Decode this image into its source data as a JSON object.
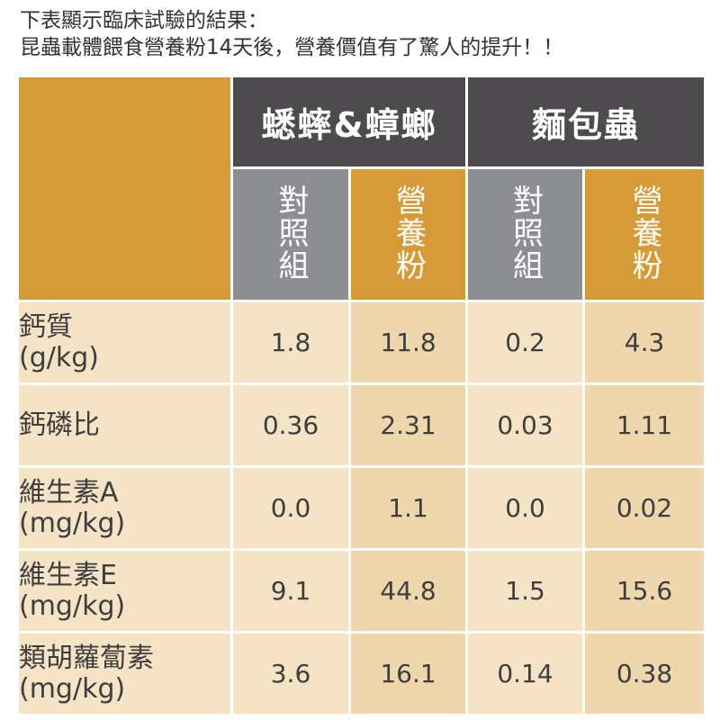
{
  "intro": {
    "line1": "下表顯示臨床試驗的結果：",
    "line2": "昆蟲載體餵食營養粉14天後，營養價值有了驚人的提升！！"
  },
  "groups": [
    {
      "label": "蟋蟀&蟑螂"
    },
    {
      "label": "麵包蟲"
    }
  ],
  "subheaders": [
    "對照組",
    "營養粉",
    "對照組",
    "營養粉"
  ],
  "rows": [
    {
      "name": "鈣質",
      "unit": "(g/kg)",
      "values": [
        "1.8",
        "11.8",
        "0.2",
        "4.3"
      ]
    },
    {
      "name": "鈣磷比",
      "unit": "",
      "values": [
        "0.36",
        "2.31",
        "0.03",
        "1.11"
      ]
    },
    {
      "name": "維生素A",
      "unit": "(mg/kg)",
      "values": [
        "0.0",
        "1.1",
        "0.0",
        "0.02"
      ]
    },
    {
      "name": "維生素E",
      "unit": "(mg/kg)",
      "values": [
        "9.1",
        "44.8",
        "1.5",
        "15.6"
      ]
    },
    {
      "name": "類胡蘿蔔素",
      "unit": "(mg/kg)",
      "values": [
        "3.6",
        "16.1",
        "0.14",
        "0.38"
      ]
    }
  ],
  "colors": {
    "orange": "#d69b36",
    "dark_header": "#4d4b4d",
    "gray_header": "#8d8e92",
    "cell_light": "#f4e3c5",
    "cell_dark": "#eed6ad"
  }
}
